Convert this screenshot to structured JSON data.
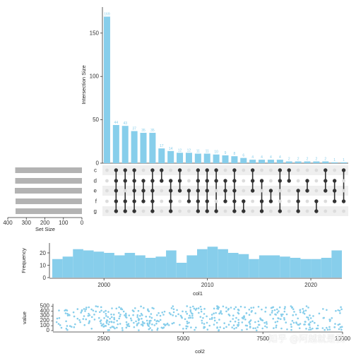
{
  "colors": {
    "bar": "#87CEEB",
    "setbar": "#b3b3b3",
    "dot_on": "#333333",
    "dot_off": "#dcdcdc",
    "stripe": "#efefef"
  },
  "watermark": "知乎 @阿越就是我",
  "chart_data": [
    {
      "type": "bar",
      "name": "upset-intersections",
      "ylabel": "Intersection Size",
      "ylim": [
        0,
        180
      ],
      "yticks": [
        0,
        50,
        100,
        150
      ],
      "values": [
        169,
        44,
        43,
        37,
        35,
        35,
        17,
        14,
        12,
        12,
        11,
        11,
        10,
        9,
        8,
        6,
        4,
        4,
        4,
        4,
        2,
        2,
        2,
        2,
        2,
        1,
        1
      ],
      "sets": [
        "c",
        "d",
        "e",
        "f",
        "g"
      ],
      "matrix": [
        [],
        [
          "c",
          "d",
          "e",
          "f",
          "g"
        ],
        [
          "c",
          "d",
          "f",
          "g"
        ],
        [
          "c",
          "d",
          "e",
          "f",
          "g"
        ],
        [
          "d",
          "e",
          "f"
        ],
        [
          "c",
          "d",
          "e",
          "f",
          "g"
        ],
        [
          "c",
          "d"
        ],
        [
          "d",
          "e",
          "f",
          "g"
        ],
        [
          "c",
          "d",
          "e"
        ],
        [
          "e",
          "f"
        ],
        [
          "c",
          "d",
          "e",
          "f",
          "g"
        ],
        [
          "c",
          "d",
          "e",
          "f",
          "g"
        ],
        [
          "c",
          "d",
          "g"
        ],
        [
          "d",
          "e",
          "f"
        ],
        [
          "c",
          "d",
          "e",
          "f",
          "g"
        ],
        [
          "f",
          "g"
        ],
        [
          "c",
          "d",
          "e"
        ],
        [
          "d",
          "f",
          "g"
        ],
        [
          "e",
          "f"
        ],
        [
          "c",
          "d",
          "g"
        ],
        [
          "c",
          "d"
        ],
        [
          "e",
          "f",
          "g"
        ],
        [
          "d",
          "e"
        ],
        [
          "f",
          "g"
        ],
        [
          "c",
          "d",
          "e"
        ],
        [
          "d",
          "e",
          "f"
        ],
        [
          "c",
          "f"
        ]
      ]
    },
    {
      "type": "bar",
      "name": "set-size",
      "xlabel": "Set Size",
      "xlim": [
        400,
        0
      ],
      "xticks": [
        400,
        300,
        200,
        100,
        0
      ],
      "categories": [
        "c",
        "d",
        "e",
        "f",
        "g"
      ],
      "values": [
        360,
        360,
        362,
        358,
        358
      ]
    },
    {
      "type": "bar",
      "name": "histogram-col1",
      "xlabel": "col1",
      "ylabel": "Frequency",
      "xlim": [
        1995,
        2023
      ],
      "xticks": [
        2000,
        2010,
        2020
      ],
      "ylim": [
        0,
        28
      ],
      "yticks": [
        0,
        10,
        20
      ],
      "bin_width": 1,
      "x": [
        1995,
        1996,
        1997,
        1998,
        1999,
        2000,
        2001,
        2002,
        2003,
        2004,
        2005,
        2006,
        2007,
        2008,
        2009,
        2010,
        2011,
        2012,
        2013,
        2014,
        2015,
        2016,
        2017,
        2018,
        2019,
        2020,
        2021,
        2022
      ],
      "values": [
        15,
        17,
        23,
        22,
        21,
        20,
        18,
        20,
        18,
        16,
        17,
        22,
        12,
        18,
        23,
        25,
        23,
        20,
        19,
        15,
        18,
        18,
        17,
        16,
        15,
        15,
        16,
        22
      ]
    },
    {
      "type": "scatter",
      "name": "scatter-col2-value",
      "xlabel": "col2",
      "ylabel": "value",
      "xlim": [
        1000,
        10000
      ],
      "xticks": [
        2500,
        5000,
        7500,
        10000
      ],
      "ylim": [
        0,
        520
      ],
      "yticks": [
        0,
        100,
        200,
        300,
        400,
        500
      ],
      "point_count": 500
    }
  ]
}
